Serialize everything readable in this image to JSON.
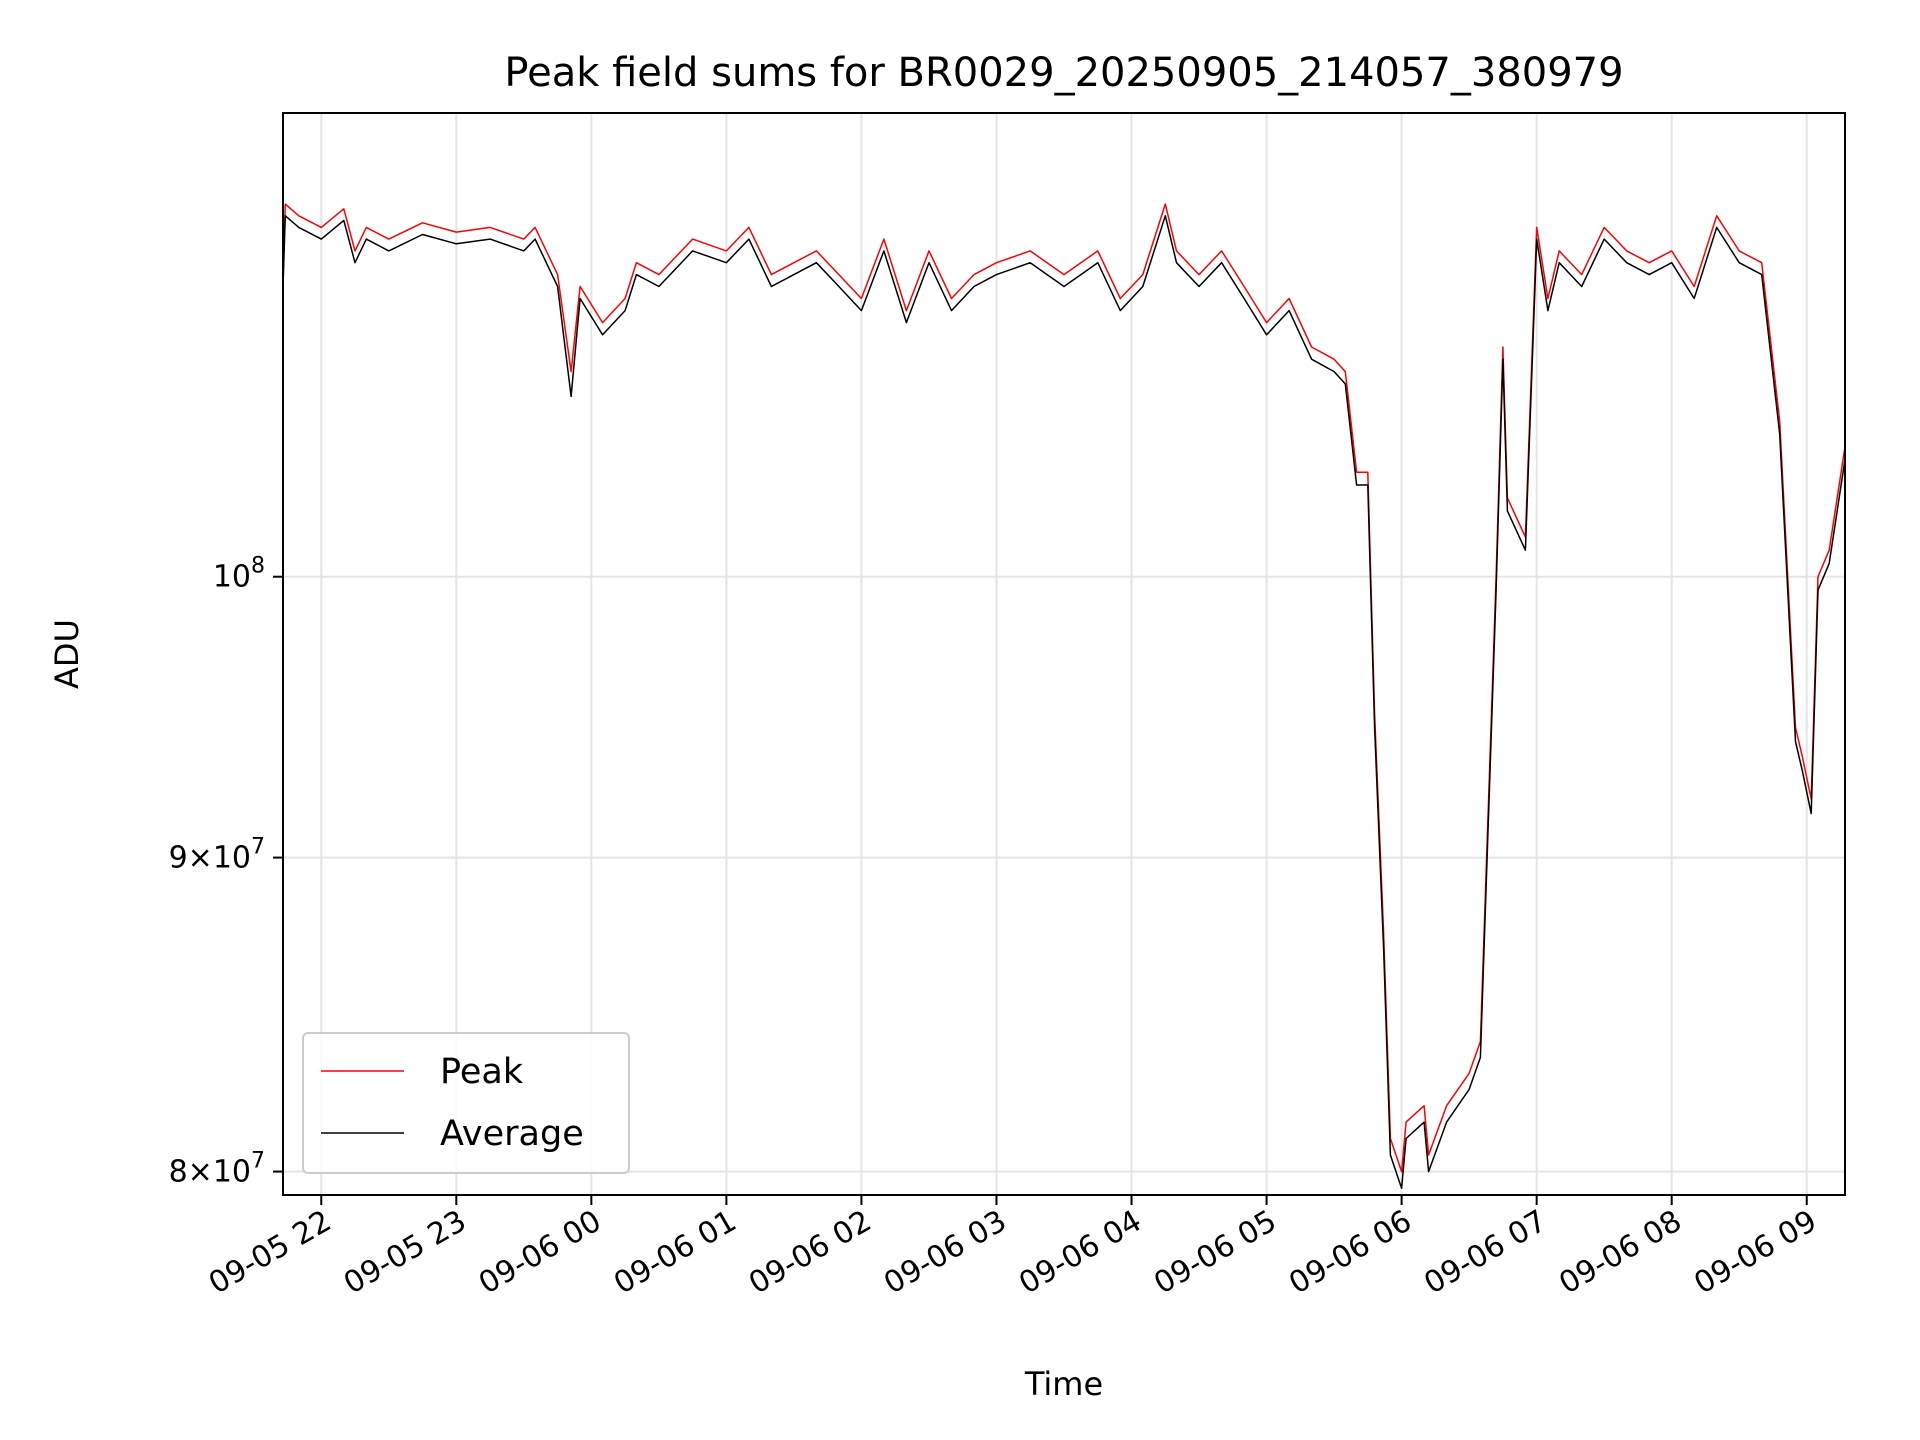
{
  "chart_data": {
    "type": "line",
    "title": "Peak field sums for BR0029_20250905_214057_380979",
    "xlabel": "Time",
    "ylabel": "ADU",
    "yscale": "log",
    "xlim": [
      "2025-09-05 21:43",
      "2025-09-06 09:17"
    ],
    "ylim": [
      79300000,
      119000000
    ],
    "grid": true,
    "legend_position": "lower-left",
    "x_ticks": [
      {
        "value": "2025-09-05 22:00",
        "label": "09-05 22"
      },
      {
        "value": "2025-09-05 23:00",
        "label": "09-05 23"
      },
      {
        "value": "2025-09-06 00:00",
        "label": "09-06 00"
      },
      {
        "value": "2025-09-06 01:00",
        "label": "09-06 01"
      },
      {
        "value": "2025-09-06 02:00",
        "label": "09-06 02"
      },
      {
        "value": "2025-09-06 03:00",
        "label": "09-06 03"
      },
      {
        "value": "2025-09-06 04:00",
        "label": "09-06 04"
      },
      {
        "value": "2025-09-06 05:00",
        "label": "09-06 05"
      },
      {
        "value": "2025-09-06 06:00",
        "label": "09-06 06"
      },
      {
        "value": "2025-09-06 07:00",
        "label": "09-06 07"
      },
      {
        "value": "2025-09-06 08:00",
        "label": "09-06 08"
      },
      {
        "value": "2025-09-06 09:00",
        "label": "09-06 09"
      }
    ],
    "y_ticks": [
      {
        "value": 80000000,
        "mantissa": "8",
        "base": "10",
        "exp": "7"
      },
      {
        "value": 90000000,
        "mantissa": "9",
        "base": "10",
        "exp": "7"
      },
      {
        "value": 100000000,
        "mantissa": "",
        "base": "10",
        "exp": "8"
      }
    ],
    "series": [
      {
        "name": "Peak",
        "color": "#ff0000",
        "x": [
          "2025-09-05 21:43",
          "2025-09-05 21:44",
          "2025-09-05 21:50",
          "2025-09-05 22:00",
          "2025-09-05 22:10",
          "2025-09-05 22:15",
          "2025-09-05 22:20",
          "2025-09-05 22:30",
          "2025-09-05 22:45",
          "2025-09-05 23:00",
          "2025-09-05 23:15",
          "2025-09-05 23:30",
          "2025-09-05 23:35",
          "2025-09-05 23:45",
          "2025-09-05 23:51",
          "2025-09-05 23:55",
          "2025-09-06 00:05",
          "2025-09-06 00:15",
          "2025-09-06 00:20",
          "2025-09-06 00:30",
          "2025-09-06 00:45",
          "2025-09-06 01:00",
          "2025-09-06 01:10",
          "2025-09-06 01:20",
          "2025-09-06 01:30",
          "2025-09-06 01:40",
          "2025-09-06 01:50",
          "2025-09-06 02:00",
          "2025-09-06 02:10",
          "2025-09-06 02:20",
          "2025-09-06 02:30",
          "2025-09-06 02:40",
          "2025-09-06 02:50",
          "2025-09-06 03:00",
          "2025-09-06 03:15",
          "2025-09-06 03:30",
          "2025-09-06 03:45",
          "2025-09-06 03:55",
          "2025-09-06 04:05",
          "2025-09-06 04:15",
          "2025-09-06 04:20",
          "2025-09-06 04:30",
          "2025-09-06 04:40",
          "2025-09-06 04:50",
          "2025-09-06 05:00",
          "2025-09-06 05:10",
          "2025-09-06 05:20",
          "2025-09-06 05:30",
          "2025-09-06 05:35",
          "2025-09-06 05:40",
          "2025-09-06 05:45",
          "2025-09-06 05:48",
          "2025-09-06 05:52",
          "2025-09-06 05:55",
          "2025-09-06 06:00",
          "2025-09-06 06:02",
          "2025-09-06 06:10",
          "2025-09-06 06:12",
          "2025-09-06 06:20",
          "2025-09-06 06:30",
          "2025-09-06 06:35",
          "2025-09-06 06:42",
          "2025-09-06 06:45",
          "2025-09-06 06:47",
          "2025-09-06 06:55",
          "2025-09-06 07:00",
          "2025-09-06 07:05",
          "2025-09-06 07:10",
          "2025-09-06 07:20",
          "2025-09-06 07:30",
          "2025-09-06 07:40",
          "2025-09-06 07:50",
          "2025-09-06 08:00",
          "2025-09-06 08:10",
          "2025-09-06 08:20",
          "2025-09-06 08:30",
          "2025-09-06 08:40",
          "2025-09-06 08:48",
          "2025-09-06 08:55",
          "2025-09-06 08:58",
          "2025-09-06 09:02",
          "2025-09-06 09:05",
          "2025-09-06 09:10",
          "2025-09-06 09:17"
        ],
        "y": [
          112000000,
          115000000,
          114500000,
          114000000,
          114800000,
          113000000,
          114000000,
          113500000,
          114200000,
          113800000,
          114000000,
          113500000,
          114000000,
          112000000,
          108000000,
          111500000,
          110000000,
          111000000,
          112500000,
          112000000,
          113500000,
          113000000,
          114000000,
          112000000,
          112500000,
          113000000,
          112000000,
          111000000,
          113500000,
          110500000,
          113000000,
          111000000,
          112000000,
          112500000,
          113000000,
          112000000,
          113000000,
          111000000,
          112000000,
          115000000,
          113000000,
          112000000,
          113000000,
          111500000,
          110000000,
          111000000,
          109000000,
          108500000,
          108000000,
          104000000,
          104000000,
          95000000,
          87500000,
          81000000,
          80000000,
          81500000,
          82000000,
          80500000,
          82000000,
          83000000,
          84000000,
          100000000,
          109000000,
          103000000,
          101500000,
          114000000,
          111000000,
          113000000,
          112000000,
          114000000,
          113000000,
          112500000,
          113000000,
          111500000,
          114500000,
          113000000,
          112500000,
          106000000,
          94500000,
          93500000,
          92000000,
          100000000,
          101000000,
          105000000
        ],
        "values_note": ""
      },
      {
        "name": "Average",
        "color": "#000000",
        "x": [
          "2025-09-05 21:43",
          "2025-09-05 21:44",
          "2025-09-05 21:50",
          "2025-09-05 22:00",
          "2025-09-05 22:10",
          "2025-09-05 22:15",
          "2025-09-05 22:20",
          "2025-09-05 22:30",
          "2025-09-05 22:45",
          "2025-09-05 23:00",
          "2025-09-05 23:15",
          "2025-09-05 23:30",
          "2025-09-05 23:35",
          "2025-09-05 23:45",
          "2025-09-05 23:51",
          "2025-09-05 23:55",
          "2025-09-06 00:05",
          "2025-09-06 00:15",
          "2025-09-06 00:20",
          "2025-09-06 00:30",
          "2025-09-06 00:45",
          "2025-09-06 01:00",
          "2025-09-06 01:10",
          "2025-09-06 01:20",
          "2025-09-06 01:30",
          "2025-09-06 01:40",
          "2025-09-06 01:50",
          "2025-09-06 02:00",
          "2025-09-06 02:10",
          "2025-09-06 02:20",
          "2025-09-06 02:30",
          "2025-09-06 02:40",
          "2025-09-06 02:50",
          "2025-09-06 03:00",
          "2025-09-06 03:15",
          "2025-09-06 03:30",
          "2025-09-06 03:45",
          "2025-09-06 03:55",
          "2025-09-06 04:05",
          "2025-09-06 04:15",
          "2025-09-06 04:20",
          "2025-09-06 04:30",
          "2025-09-06 04:40",
          "2025-09-06 04:50",
          "2025-09-06 05:00",
          "2025-09-06 05:10",
          "2025-09-06 05:20",
          "2025-09-06 05:30",
          "2025-09-06 05:35",
          "2025-09-06 05:40",
          "2025-09-06 05:45",
          "2025-09-06 05:48",
          "2025-09-06 05:52",
          "2025-09-06 05:55",
          "2025-09-06 06:00",
          "2025-09-06 06:02",
          "2025-09-06 06:10",
          "2025-09-06 06:12",
          "2025-09-06 06:20",
          "2025-09-06 06:30",
          "2025-09-06 06:35",
          "2025-09-06 06:42",
          "2025-09-06 06:45",
          "2025-09-06 06:47",
          "2025-09-06 06:55",
          "2025-09-06 07:00",
          "2025-09-06 07:05",
          "2025-09-06 07:10",
          "2025-09-06 07:20",
          "2025-09-06 07:30",
          "2025-09-06 07:40",
          "2025-09-06 07:50",
          "2025-09-06 08:00",
          "2025-09-06 08:10",
          "2025-09-06 08:20",
          "2025-09-06 08:30",
          "2025-09-06 08:40",
          "2025-09-06 08:48",
          "2025-09-06 08:55",
          "2025-09-06 08:58",
          "2025-09-06 09:02",
          "2025-09-06 09:05",
          "2025-09-06 09:10",
          "2025-09-06 09:17"
        ],
        "y": [
          111500000,
          114500000,
          114000000,
          113500000,
          114300000,
          112500000,
          113500000,
          113000000,
          113700000,
          113300000,
          113500000,
          113000000,
          113500000,
          111500000,
          107000000,
          111000000,
          109500000,
          110500000,
          112000000,
          111500000,
          113000000,
          112500000,
          113500000,
          111500000,
          112000000,
          112500000,
          111500000,
          110500000,
          113000000,
          110000000,
          112500000,
          110500000,
          111500000,
          112000000,
          112500000,
          111500000,
          112500000,
          110500000,
          111500000,
          114500000,
          112500000,
          111500000,
          112500000,
          111000000,
          109500000,
          110500000,
          108500000,
          108000000,
          107500000,
          103500000,
          103500000,
          94500000,
          87000000,
          80500000,
          79500000,
          81000000,
          81500000,
          80000000,
          81500000,
          82500000,
          83500000,
          99500000,
          108500000,
          102500000,
          101000000,
          113500000,
          110500000,
          112500000,
          111500000,
          113500000,
          112500000,
          112000000,
          112500000,
          111000000,
          114000000,
          112500000,
          112000000,
          105500000,
          94000000,
          93000000,
          91500000,
          99500000,
          100500000,
          104500000
        ]
      }
    ]
  }
}
